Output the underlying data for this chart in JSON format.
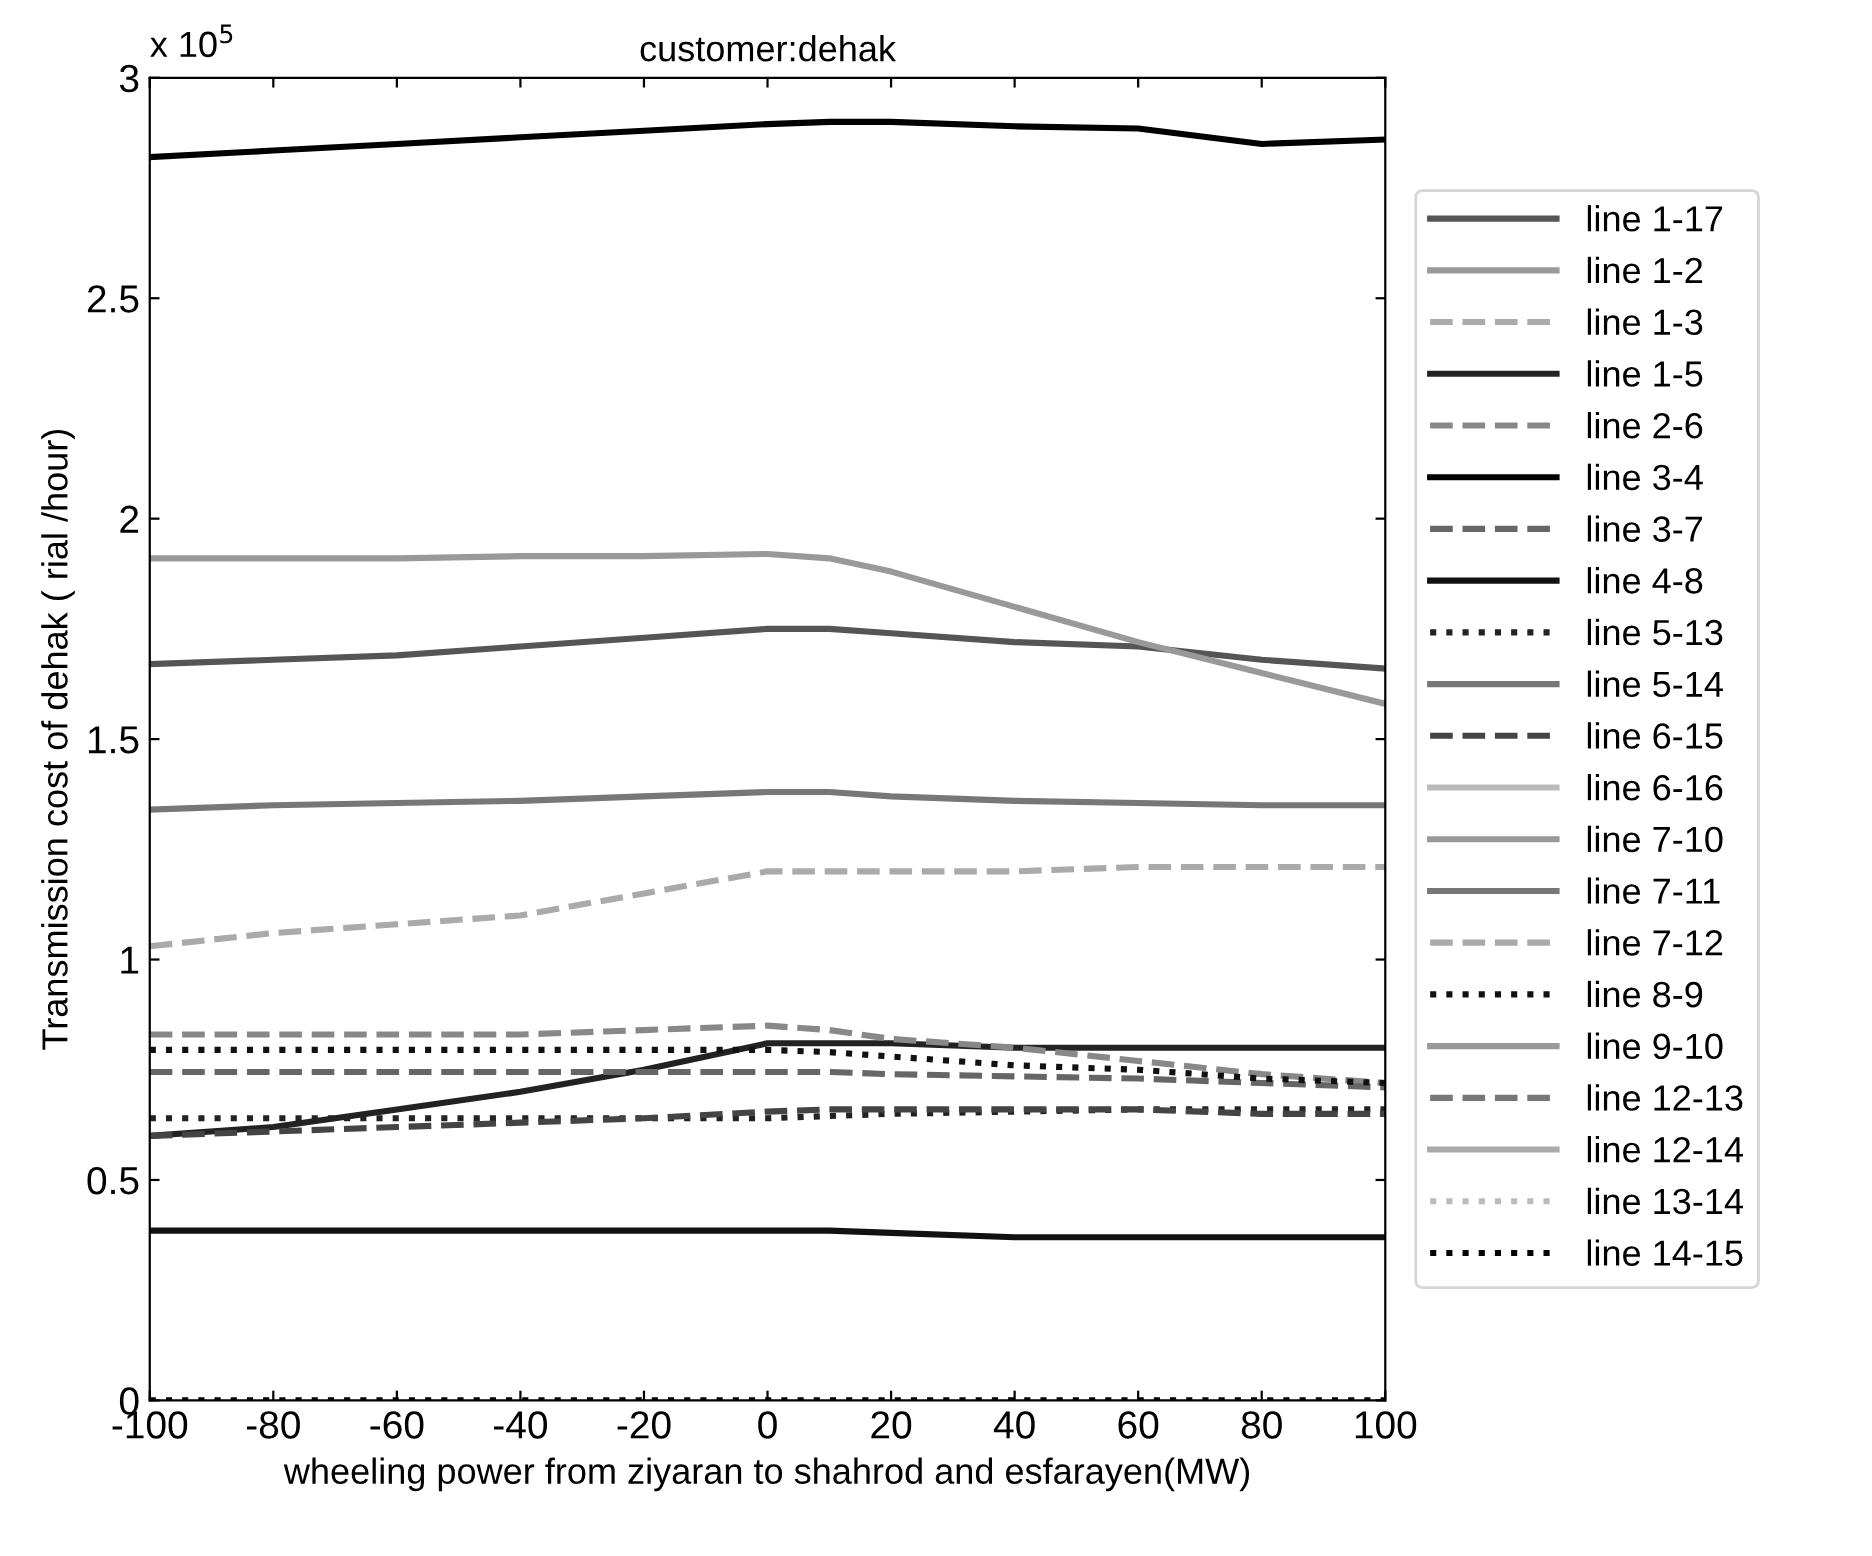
{
  "chart_data": {
    "type": "line",
    "title": "customer:dehak",
    "xlabel": "wheeling power from ziyaran to shahrod and esfarayen(MW)",
    "ylabel": "Transmission cost of dehak ( rial /hour)",
    "annotations": [
      "x 10$^{5}$"
    ],
    "x": [
      -100,
      -80,
      -60,
      -40,
      -20,
      0,
      10,
      20,
      40,
      60,
      80,
      100
    ],
    "xlim": [
      -100,
      100
    ],
    "xticks": [
      -100,
      -80,
      -60,
      -40,
      -20,
      0,
      20,
      40,
      60,
      80,
      100
    ],
    "ylim": [
      0,
      3
    ],
    "yticks": [
      0,
      0.5,
      1,
      1.5,
      2,
      2.5,
      3
    ],
    "grid": false,
    "legend": "right",
    "series": [
      {
        "name": "line 1-17",
        "color": "#555555",
        "line_style": "solid",
        "values": [
          1.67,
          1.68,
          1.69,
          1.71,
          1.73,
          1.75,
          1.75,
          1.74,
          1.72,
          1.71,
          1.68,
          1.66
        ]
      },
      {
        "name": "line 1-2",
        "color": "#999999",
        "line_style": "solid",
        "values": [
          1.91,
          1.91,
          1.91,
          1.915,
          1.915,
          1.92,
          1.91,
          1.88,
          1.8,
          1.72,
          1.65,
          1.58
        ]
      },
      {
        "name": "line 1-3",
        "color": "#aaaaaa",
        "line_style": "dashed",
        "values": [
          1.03,
          1.06,
          1.08,
          1.1,
          1.15,
          1.2,
          1.2,
          1.2,
          1.2,
          1.21,
          1.21,
          1.21
        ]
      },
      {
        "name": "line 1-5",
        "color": "#222222",
        "line_style": "solid",
        "values": [
          0.6,
          0.62,
          0.66,
          0.7,
          0.75,
          0.81,
          0.81,
          0.81,
          0.8,
          0.8,
          0.8,
          0.8
        ]
      },
      {
        "name": "line 2-6",
        "color": "#888888",
        "line_style": "dashed",
        "values": [
          0.83,
          0.83,
          0.83,
          0.83,
          0.84,
          0.85,
          0.84,
          0.82,
          0.8,
          0.77,
          0.74,
          0.72
        ]
      },
      {
        "name": "line 3-4",
        "color": "#000000",
        "line_style": "solid",
        "values": [
          2.82,
          2.835,
          2.85,
          2.865,
          2.88,
          2.895,
          2.9,
          2.9,
          2.89,
          2.885,
          2.85,
          2.86
        ]
      },
      {
        "name": "line 3-7",
        "color": "#666666",
        "line_style": "dashed",
        "values": [
          0.745,
          0.745,
          0.745,
          0.745,
          0.745,
          0.745,
          0.745,
          0.74,
          0.735,
          0.73,
          0.72,
          0.71
        ]
      },
      {
        "name": "line 4-8",
        "color": "#111111",
        "line_style": "solid",
        "values": [
          0.385,
          0.385,
          0.385,
          0.385,
          0.385,
          0.385,
          0.385,
          0.38,
          0.37,
          0.37,
          0.37,
          0.37
        ]
      },
      {
        "name": "line 5-13",
        "color": "#222222",
        "line_style": "dotted",
        "values": [
          0.64,
          0.64,
          0.64,
          0.64,
          0.64,
          0.64,
          0.645,
          0.65,
          0.655,
          0.66,
          0.66,
          0.66
        ]
      },
      {
        "name": "line 5-14",
        "color": "#777777",
        "line_style": "solid",
        "values": [
          1.34,
          1.35,
          1.355,
          1.36,
          1.37,
          1.38,
          1.38,
          1.37,
          1.36,
          1.355,
          1.35,
          1.35
        ]
      },
      {
        "name": "line 6-15",
        "color": "#444444",
        "line_style": "dashed",
        "values": [
          0.6,
          0.61,
          0.62,
          0.63,
          0.64,
          0.655,
          0.66,
          0.66,
          0.66,
          0.66,
          0.65,
          0.65
        ]
      },
      {
        "name": "line 6-16",
        "color": "#bbbbbb",
        "line_style": "solid",
        "values": [
          null,
          null,
          null,
          null,
          null,
          null,
          null,
          null,
          null,
          null,
          null,
          null
        ]
      },
      {
        "name": "line 7-10",
        "color": "#999999",
        "line_style": "solid",
        "values": [
          null,
          null,
          null,
          null,
          null,
          null,
          null,
          null,
          null,
          null,
          null,
          null
        ]
      },
      {
        "name": "line 7-11",
        "color": "#777777",
        "line_style": "solid",
        "values": [
          null,
          null,
          null,
          null,
          null,
          null,
          null,
          null,
          null,
          null,
          null,
          null
        ]
      },
      {
        "name": "line 7-12",
        "color": "#aaaaaa",
        "line_style": "dashed",
        "values": [
          null,
          null,
          null,
          null,
          null,
          null,
          null,
          null,
          null,
          null,
          null,
          null
        ]
      },
      {
        "name": "line 8-9",
        "color": "#111111",
        "line_style": "dotted",
        "values": [
          0.795,
          0.795,
          0.795,
          0.795,
          0.795,
          0.795,
          0.79,
          0.78,
          0.76,
          0.75,
          0.73,
          0.72
        ]
      },
      {
        "name": "line 9-10",
        "color": "#999999",
        "line_style": "solid",
        "values": [
          null,
          null,
          null,
          null,
          null,
          null,
          null,
          null,
          null,
          null,
          null,
          null
        ]
      },
      {
        "name": "line 12-13",
        "color": "#777777",
        "line_style": "dashed",
        "values": [
          null,
          null,
          null,
          null,
          null,
          null,
          null,
          null,
          null,
          null,
          null,
          null
        ]
      },
      {
        "name": "line 12-14",
        "color": "#aaaaaa",
        "line_style": "solid",
        "values": [
          null,
          null,
          null,
          null,
          null,
          null,
          null,
          null,
          null,
          null,
          null,
          null
        ]
      },
      {
        "name": "line 13-14",
        "color": "#bbbbbb",
        "line_style": "dotted",
        "values": [
          null,
          null,
          null,
          null,
          null,
          null,
          null,
          null,
          null,
          null,
          null,
          null
        ]
      },
      {
        "name": "line 14-15",
        "color": "#000000",
        "line_style": "dotted",
        "values": [
          0,
          0,
          0,
          0,
          0,
          0,
          0,
          0,
          0,
          0,
          0,
          0
        ]
      }
    ]
  }
}
